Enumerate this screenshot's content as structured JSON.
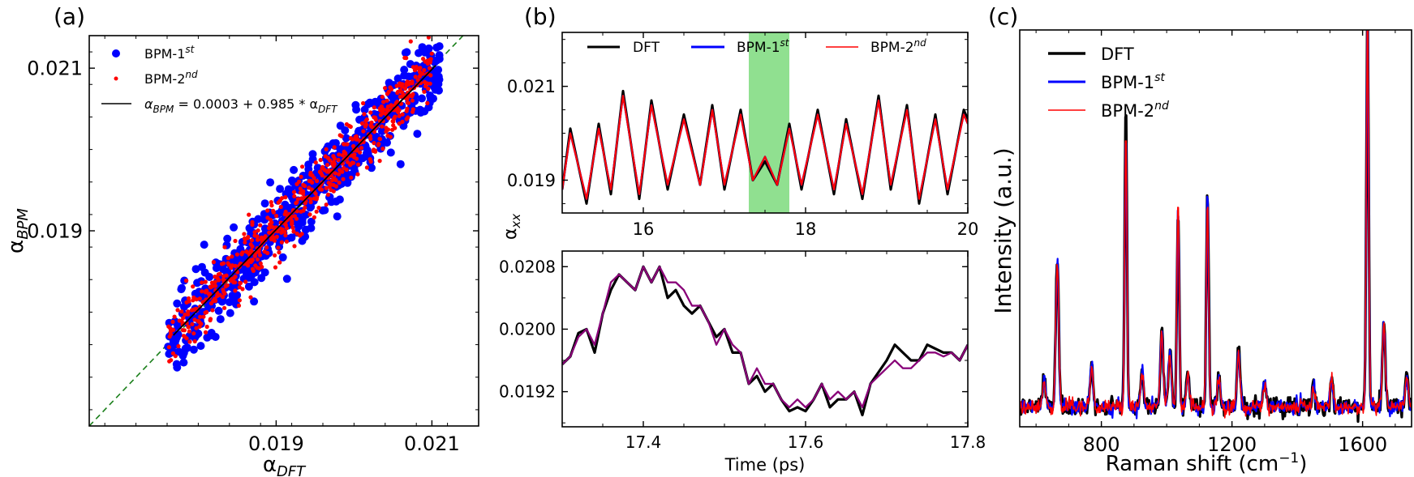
{
  "chart_data": [
    {
      "panel_label": "(a)",
      "type": "scatter",
      "xlabel": "α",
      "xlabel_sub": "DFT",
      "ylabel": "α",
      "ylabel_sub": "BPM",
      "xlim": [
        0.0166,
        0.0216
      ],
      "ylim": [
        0.0166,
        0.0214
      ],
      "xticks": [
        0.019,
        0.021
      ],
      "xtick_labels": [
        "0.019",
        "0.021"
      ],
      "yticks": [
        0.019,
        0.021
      ],
      "ytick_labels": [
        "0.019",
        "0.021"
      ],
      "legend_position": "top-left",
      "legend": [
        {
          "label": "BPM-1",
          "sup": "st",
          "marker": "dot",
          "color": "#0000ff"
        },
        {
          "label": "BPM-2",
          "sup": "nd",
          "marker": "dot",
          "color": "#ff0000"
        },
        {
          "label": "α",
          "sub": "BPM",
          "text": " = 0.0003 + 0.985 * α",
          "sub2": "DFT",
          "marker": "line",
          "color": "#000000"
        }
      ],
      "series": [
        {
          "name": "BPM-1st",
          "color": "#0000ff",
          "x_range": [
            0.0176,
            0.0211
          ],
          "points": 600
        },
        {
          "name": "BPM-2nd",
          "color": "#ff0000",
          "x_range": [
            0.0176,
            0.021
          ],
          "points": 600
        }
      ],
      "fit": {
        "intercept": 0.0003,
        "slope": 0.985,
        "color": "#000000"
      },
      "reference_line": {
        "type": "y=x",
        "style": "dashed",
        "color": "#1a7f1a"
      }
    },
    {
      "panel_label": "(b)",
      "type": "line",
      "ylabel": "α",
      "ylabel_sub": "xx",
      "xlim": [
        15,
        20
      ],
      "ylim": [
        0.0183,
        0.02215
      ],
      "xticks": [
        16,
        18,
        20
      ],
      "xtick_labels": [
        "16",
        "18",
        "20"
      ],
      "yticks": [
        0.019,
        0.021
      ],
      "ytick_labels": [
        "0.019",
        "0.021"
      ],
      "highlight": {
        "x": [
          17.3,
          17.8
        ],
        "color": "#90e090"
      },
      "legend_position": "top",
      "legend": [
        {
          "label": "DFT",
          "color": "#000000"
        },
        {
          "label": "BPM-1",
          "sup": "st",
          "color": "#0000ff"
        },
        {
          "label": "BPM-2",
          "sup": "nd",
          "color": "#ff0000"
        }
      ],
      "series": [
        {
          "name": "DFT",
          "color": "#000000",
          "x": [
            15.0,
            15.1,
            15.3,
            15.45,
            15.6,
            15.75,
            15.95,
            16.1,
            16.3,
            16.5,
            16.7,
            16.85,
            17.0,
            17.2,
            17.35,
            17.5,
            17.65,
            17.8,
            17.95,
            18.15,
            18.35,
            18.5,
            18.7,
            18.9,
            19.05,
            19.25,
            19.4,
            19.6,
            19.75,
            19.95,
            20.0
          ],
          "y": [
            0.0188,
            0.0201,
            0.0185,
            0.0202,
            0.0187,
            0.0209,
            0.0186,
            0.0207,
            0.0188,
            0.0204,
            0.0189,
            0.0206,
            0.0188,
            0.0205,
            0.019,
            0.0194,
            0.0189,
            0.0202,
            0.0188,
            0.0205,
            0.0187,
            0.0203,
            0.0186,
            0.0208,
            0.0188,
            0.0206,
            0.0185,
            0.0204,
            0.0187,
            0.0205,
            0.0203
          ]
        },
        {
          "name": "BPM-1st",
          "color": "#0000ff",
          "x": [
            15.0,
            15.1,
            15.3,
            15.45,
            15.6,
            15.75,
            15.95,
            16.1,
            16.3,
            16.5,
            16.7,
            16.85,
            17.0,
            17.2,
            17.35,
            17.5,
            17.65,
            17.8,
            17.95,
            18.15,
            18.35,
            18.5,
            18.7,
            18.9,
            19.05,
            19.25,
            19.4,
            19.6,
            19.75,
            19.95,
            20.0
          ],
          "y": [
            0.0188,
            0.02,
            0.0186,
            0.0201,
            0.0188,
            0.0208,
            0.0187,
            0.0206,
            0.0189,
            0.0203,
            0.0189,
            0.0205,
            0.0189,
            0.0204,
            0.019,
            0.0195,
            0.0189,
            0.0201,
            0.0189,
            0.0204,
            0.0188,
            0.0202,
            0.0187,
            0.0207,
            0.0189,
            0.0205,
            0.0186,
            0.0203,
            0.0188,
            0.0204,
            0.0202
          ]
        },
        {
          "name": "BPM-2nd",
          "color": "#ff0000",
          "x": [
            15.0,
            15.1,
            15.3,
            15.45,
            15.6,
            15.75,
            15.95,
            16.1,
            16.3,
            16.5,
            16.7,
            16.85,
            17.0,
            17.2,
            17.35,
            17.5,
            17.65,
            17.8,
            17.95,
            18.15,
            18.35,
            18.5,
            18.7,
            18.9,
            19.05,
            19.25,
            19.4,
            19.6,
            19.75,
            19.95,
            20.0
          ],
          "y": [
            0.0188,
            0.02,
            0.0186,
            0.0201,
            0.0188,
            0.0208,
            0.0187,
            0.0206,
            0.0189,
            0.0203,
            0.0189,
            0.0205,
            0.0189,
            0.0204,
            0.019,
            0.0195,
            0.0189,
            0.0201,
            0.0189,
            0.0204,
            0.0188,
            0.0202,
            0.0187,
            0.0207,
            0.0189,
            0.0205,
            0.0186,
            0.0203,
            0.0188,
            0.0204,
            0.0202
          ]
        }
      ]
    },
    {
      "panel_label": "",
      "type": "line",
      "xlabel": "Time (ps)",
      "xlim": [
        17.3,
        17.8
      ],
      "ylim": [
        0.01875,
        0.021
      ],
      "xticks": [
        17.4,
        17.6,
        17.8
      ],
      "xtick_labels": [
        "17.4",
        "17.6",
        "17.8"
      ],
      "yticks": [
        0.0192,
        0.02,
        0.0208
      ],
      "ytick_labels": [
        "0.0192",
        "0.0200",
        "0.0208"
      ],
      "series": [
        {
          "name": "DFT",
          "color": "#000000",
          "x": [
            17.3,
            17.31,
            17.32,
            17.33,
            17.34,
            17.35,
            17.36,
            17.37,
            17.38,
            17.39,
            17.4,
            17.41,
            17.42,
            17.43,
            17.44,
            17.45,
            17.46,
            17.47,
            17.48,
            17.49,
            17.5,
            17.51,
            17.52,
            17.53,
            17.54,
            17.55,
            17.56,
            17.57,
            17.58,
            17.59,
            17.6,
            17.61,
            17.62,
            17.63,
            17.64,
            17.65,
            17.66,
            17.67,
            17.68,
            17.69,
            17.7,
            17.71,
            17.72,
            17.73,
            17.74,
            17.75,
            17.76,
            17.77,
            17.78,
            17.79,
            17.8
          ],
          "y": [
            0.01955,
            0.01965,
            0.01995,
            0.02,
            0.0197,
            0.0202,
            0.0205,
            0.0207,
            0.0206,
            0.0205,
            0.0208,
            0.0206,
            0.0208,
            0.0204,
            0.0205,
            0.0203,
            0.0202,
            0.0203,
            0.0201,
            0.0199,
            0.02,
            0.0197,
            0.0197,
            0.0193,
            0.0194,
            0.0192,
            0.0193,
            0.0191,
            0.01895,
            0.019,
            0.01895,
            0.0191,
            0.0193,
            0.019,
            0.0191,
            0.0191,
            0.0192,
            0.0189,
            0.0193,
            0.01945,
            0.0196,
            0.0198,
            0.0197,
            0.0196,
            0.0196,
            0.0198,
            0.01975,
            0.0197,
            0.0197,
            0.0196,
            0.0198
          ]
        },
        {
          "name": "BPM-1st",
          "color": "#0000ff",
          "x": [
            17.3,
            17.31,
            17.32,
            17.33,
            17.34,
            17.35,
            17.36,
            17.37,
            17.38,
            17.39,
            17.4,
            17.41,
            17.42,
            17.43,
            17.44,
            17.45,
            17.46,
            17.47,
            17.48,
            17.49,
            17.5,
            17.51,
            17.52,
            17.53,
            17.54,
            17.55,
            17.56,
            17.57,
            17.58,
            17.59,
            17.6,
            17.61,
            17.62,
            17.63,
            17.64,
            17.65,
            17.66,
            17.67,
            17.68,
            17.69,
            17.7,
            17.71,
            17.72,
            17.73,
            17.74,
            17.75,
            17.76,
            17.77,
            17.78,
            17.79,
            17.8
          ],
          "y": [
            0.01955,
            0.01965,
            0.0199,
            0.02,
            0.0198,
            0.0202,
            0.0206,
            0.0207,
            0.0206,
            0.0205,
            0.0208,
            0.0206,
            0.0208,
            0.0206,
            0.0206,
            0.0205,
            0.0203,
            0.0203,
            0.0201,
            0.0198,
            0.02,
            0.0198,
            0.0197,
            0.0193,
            0.0195,
            0.0193,
            0.0193,
            0.0191,
            0.019,
            0.0191,
            0.019,
            0.0191,
            0.0193,
            0.0191,
            0.0192,
            0.0191,
            0.0192,
            0.019,
            0.0193,
            0.0194,
            0.0195,
            0.0196,
            0.0195,
            0.0195,
            0.0196,
            0.0197,
            0.0197,
            0.01965,
            0.0197,
            0.0196,
            0.0198
          ]
        },
        {
          "name": "BPM-2nd",
          "color": "#ff0000",
          "x": [
            17.3,
            17.31,
            17.32,
            17.33,
            17.34,
            17.35,
            17.36,
            17.37,
            17.38,
            17.39,
            17.4,
            17.41,
            17.42,
            17.43,
            17.44,
            17.45,
            17.46,
            17.47,
            17.48,
            17.49,
            17.5,
            17.51,
            17.52,
            17.53,
            17.54,
            17.55,
            17.56,
            17.57,
            17.58,
            17.59,
            17.6,
            17.61,
            17.62,
            17.63,
            17.64,
            17.65,
            17.66,
            17.67,
            17.68,
            17.69,
            17.7,
            17.71,
            17.72,
            17.73,
            17.74,
            17.75,
            17.76,
            17.77,
            17.78,
            17.79,
            17.8
          ],
          "y": [
            0.01955,
            0.01965,
            0.0199,
            0.02,
            0.0198,
            0.0202,
            0.0206,
            0.0207,
            0.0206,
            0.0205,
            0.0208,
            0.0206,
            0.0208,
            0.0206,
            0.0206,
            0.0205,
            0.0203,
            0.0203,
            0.0201,
            0.0198,
            0.02,
            0.0198,
            0.0197,
            0.0193,
            0.0195,
            0.0193,
            0.0193,
            0.0191,
            0.019,
            0.0191,
            0.019,
            0.0191,
            0.0193,
            0.0191,
            0.0192,
            0.0191,
            0.0192,
            0.019,
            0.0193,
            0.0194,
            0.0195,
            0.0196,
            0.0195,
            0.0195,
            0.0196,
            0.0197,
            0.0197,
            0.01965,
            0.0197,
            0.0196,
            0.0198
          ]
        }
      ]
    },
    {
      "panel_label": "(c)",
      "type": "line",
      "xlabel": "Raman shift (cm",
      "xlabel_sup": "−1",
      "xlabel_end": ")",
      "ylabel": "Intensity (a.u.)",
      "xlim": [
        550,
        1750
      ],
      "ylim": [
        0,
        1.0
      ],
      "xticks": [
        800,
        1200,
        1600
      ],
      "xtick_labels": [
        "800",
        "1200",
        "1600"
      ],
      "legend_position": "top-left",
      "legend": [
        {
          "label": "DFT",
          "color": "#000000"
        },
        {
          "label": "BPM-1",
          "sup": "st",
          "color": "#0000ff"
        },
        {
          "label": "BPM-2",
          "sup": "nd",
          "color": "#ff0000"
        }
      ],
      "baseline": 0.05,
      "noise_amplitude": 0.012,
      "peaks": [
        {
          "x": 625,
          "dft": 0.08,
          "bpm1": 0.07,
          "bpm2": 0.07
        },
        {
          "x": 665,
          "dft": 0.38,
          "bpm1": 0.37,
          "bpm2": 0.37
        },
        {
          "x": 770,
          "dft": 0.11,
          "bpm1": 0.1,
          "bpm2": 0.1
        },
        {
          "x": 875,
          "dft": 0.76,
          "bpm1": 0.69,
          "bpm2": 0.7
        },
        {
          "x": 925,
          "dft": 0.1,
          "bpm1": 0.09,
          "bpm2": 0.09
        },
        {
          "x": 985,
          "dft": 0.2,
          "bpm1": 0.19,
          "bpm2": 0.19
        },
        {
          "x": 1010,
          "dft": 0.15,
          "bpm1": 0.14,
          "bpm2": 0.14
        },
        {
          "x": 1035,
          "dft": 0.51,
          "bpm1": 0.51,
          "bpm2": 0.52
        },
        {
          "x": 1065,
          "dft": 0.09,
          "bpm1": 0.08,
          "bpm2": 0.08
        },
        {
          "x": 1125,
          "dft": 0.56,
          "bpm1": 0.53,
          "bpm2": 0.53
        },
        {
          "x": 1160,
          "dft": 0.08,
          "bpm1": 0.07,
          "bpm2": 0.07
        },
        {
          "x": 1220,
          "dft": 0.15,
          "bpm1": 0.14,
          "bpm2": 0.14
        },
        {
          "x": 1300,
          "dft": 0.07,
          "bpm1": 0.06,
          "bpm2": 0.06
        },
        {
          "x": 1450,
          "dft": 0.06,
          "bpm1": 0.05,
          "bpm2": 0.05
        },
        {
          "x": 1505,
          "dft": 0.08,
          "bpm1": 0.07,
          "bpm2": 0.07
        },
        {
          "x": 1615,
          "dft": 1.0,
          "bpm1": 1.0,
          "bpm2": 1.0
        },
        {
          "x": 1665,
          "dft": 0.21,
          "bpm1": 0.21,
          "bpm2": 0.21
        },
        {
          "x": 1735,
          "dft": 0.08,
          "bpm1": 0.07,
          "bpm2": 0.07
        }
      ]
    }
  ]
}
